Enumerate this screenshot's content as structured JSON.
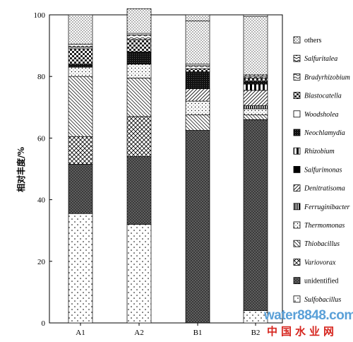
{
  "chart_data": {
    "type": "stacked-bar",
    "ylabel": "相对丰度/%",
    "ylim": [
      0,
      100
    ],
    "yticks": [
      0,
      20,
      40,
      60,
      80,
      100
    ],
    "categories": [
      "A1",
      "A2",
      "B1",
      "B2"
    ],
    "legend_position": "right",
    "series": [
      {
        "name": "Sulfobacillus",
        "pattern": "sparse-dots",
        "values": [
          35.5,
          32,
          0,
          4
        ]
      },
      {
        "name": "unidentified",
        "pattern": "dense-dots",
        "values": [
          16,
          22,
          62.5,
          62
        ]
      },
      {
        "name": "Variovorax",
        "pattern": "crosshatch",
        "values": [
          9,
          13,
          0,
          0
        ]
      },
      {
        "name": "Thiobacillus",
        "pattern": "diag-right",
        "values": [
          19.5,
          12.5,
          5,
          1.5
        ]
      },
      {
        "name": "Thermomonas",
        "pattern": "dots-light",
        "values": [
          3,
          4.5,
          4.5,
          2
        ]
      },
      {
        "name": "Ferruginibacter",
        "pattern": "vertical-dense",
        "values": [
          0,
          0,
          0,
          1
        ]
      },
      {
        "name": "Denitratisoma",
        "pattern": "diag-left",
        "values": [
          0,
          0,
          4,
          5
        ]
      },
      {
        "name": "Salfurimonas",
        "pattern": "solid",
        "values": [
          0,
          0,
          0,
          0
        ]
      },
      {
        "name": "Rhizobium",
        "pattern": "half-fill",
        "values": [
          0,
          0,
          0,
          2
        ]
      },
      {
        "name": "Neochlamydia",
        "pattern": "dense-dark",
        "values": [
          1,
          4,
          5.5,
          1
        ]
      },
      {
        "name": "Woodsholea",
        "pattern": "white",
        "values": [
          0,
          0,
          0,
          0
        ]
      },
      {
        "name": "Blastocatella",
        "pattern": "checker",
        "values": [
          5,
          4,
          1,
          1
        ]
      },
      {
        "name": "Bradyrhizobium",
        "pattern": "wave",
        "values": [
          0.5,
          1.5,
          1,
          0.5
        ]
      },
      {
        "name": "Salfuritalea",
        "pattern": "zigzag",
        "values": [
          1,
          0.5,
          0.5,
          0.5
        ]
      },
      {
        "name": "others",
        "pattern": "dots-fine",
        "values": [
          9.5,
          8,
          14,
          19
        ]
      }
    ]
  },
  "watermark": {
    "url": "water8848.com",
    "text": "中国水业网"
  }
}
